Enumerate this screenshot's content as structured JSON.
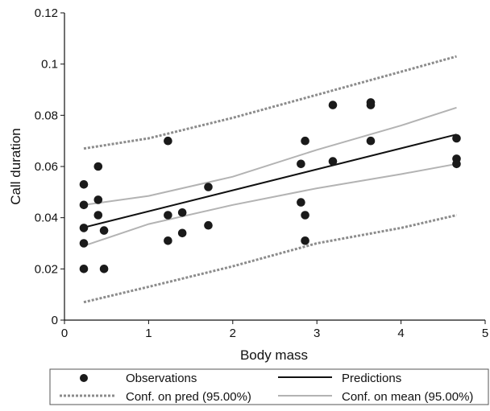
{
  "chart_data": {
    "type": "scatter",
    "xlabel": "Body mass",
    "ylabel": "Call duration",
    "xlim": [
      0,
      5
    ],
    "ylim": [
      0,
      0.12
    ],
    "x_ticks": [
      {
        "value": 0,
        "label": "0"
      },
      {
        "value": 1,
        "label": "1"
      },
      {
        "value": 2,
        "label": "2"
      },
      {
        "value": 3,
        "label": "3"
      },
      {
        "value": 4,
        "label": "4"
      },
      {
        "value": 5,
        "label": "5"
      }
    ],
    "y_ticks": [
      {
        "value": 0,
        "label": "0"
      },
      {
        "value": 0.02,
        "label": "0.02"
      },
      {
        "value": 0.04,
        "label": "0.04"
      },
      {
        "value": 0.06,
        "label": "0.06"
      },
      {
        "value": 0.08,
        "label": "0.08"
      },
      {
        "value": 0.1,
        "label": "0.1"
      },
      {
        "value": 0.12,
        "label": "0.12"
      }
    ],
    "grid": false,
    "legend_position": "bottom",
    "series": [
      {
        "name": "Observations",
        "kind": "points",
        "color": "#1a1a1a",
        "points": [
          [
            0.23,
            0.053
          ],
          [
            0.23,
            0.045
          ],
          [
            0.23,
            0.036
          ],
          [
            0.23,
            0.03
          ],
          [
            0.23,
            0.02
          ],
          [
            0.4,
            0.06
          ],
          [
            0.4,
            0.047
          ],
          [
            0.4,
            0.041
          ],
          [
            0.47,
            0.035
          ],
          [
            0.47,
            0.02
          ],
          [
            1.23,
            0.07
          ],
          [
            1.23,
            0.041
          ],
          [
            1.23,
            0.031
          ],
          [
            1.4,
            0.042
          ],
          [
            1.4,
            0.034
          ],
          [
            1.71,
            0.052
          ],
          [
            1.71,
            0.037
          ],
          [
            2.81,
            0.061
          ],
          [
            2.81,
            0.046
          ],
          [
            2.86,
            0.07
          ],
          [
            2.86,
            0.041
          ],
          [
            2.86,
            0.031
          ],
          [
            3.19,
            0.084
          ],
          [
            3.19,
            0.062
          ],
          [
            3.64,
            0.085
          ],
          [
            3.64,
            0.084
          ],
          [
            3.64,
            0.07
          ],
          [
            4.66,
            0.071
          ],
          [
            4.66,
            0.063
          ],
          [
            4.66,
            0.061
          ]
        ]
      },
      {
        "name": "Predictions",
        "kind": "line",
        "color": "#111111",
        "points": [
          [
            0.23,
            0.0362
          ],
          [
            4.66,
            0.0725
          ]
        ]
      },
      {
        "name": "Conf. on pred (95.00%)",
        "kind": "dotted-band",
        "color": "#8c8c8c",
        "upper": [
          [
            0.23,
            0.067
          ],
          [
            1.0,
            0.071
          ],
          [
            2.0,
            0.079
          ],
          [
            3.0,
            0.088
          ],
          [
            4.0,
            0.097
          ],
          [
            4.66,
            0.103
          ]
        ],
        "lower": [
          [
            0.23,
            0.007
          ],
          [
            1.0,
            0.013
          ],
          [
            2.0,
            0.021
          ],
          [
            3.0,
            0.03
          ],
          [
            4.0,
            0.036
          ],
          [
            4.66,
            0.041
          ]
        ]
      },
      {
        "name": "Conf. on mean (95.00%)",
        "kind": "band",
        "color": "#b3b3b3",
        "upper": [
          [
            0.23,
            0.045
          ],
          [
            1.0,
            0.0485
          ],
          [
            2.0,
            0.056
          ],
          [
            3.0,
            0.0665
          ],
          [
            4.0,
            0.076
          ],
          [
            4.66,
            0.083
          ]
        ],
        "lower": [
          [
            0.23,
            0.029
          ],
          [
            1.0,
            0.0375
          ],
          [
            2.0,
            0.045
          ],
          [
            3.0,
            0.0515
          ],
          [
            4.0,
            0.057
          ],
          [
            4.66,
            0.061
          ]
        ]
      }
    ]
  }
}
